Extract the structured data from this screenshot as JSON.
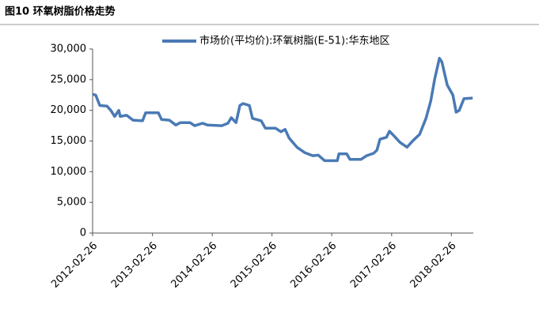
{
  "chart_data": {
    "type": "line",
    "title": "图10 环氧树脂价格走势",
    "x": [
      "2012-02-26",
      "2012-03-16",
      "2012-04-10",
      "2012-05-23",
      "2012-06-16",
      "2012-07-10",
      "2012-08-04",
      "2012-08-13",
      "2012-09-21",
      "2012-10-30",
      "2012-12-27",
      "2013-01-15",
      "2013-04-03",
      "2013-04-22",
      "2013-06-09",
      "2013-07-18",
      "2013-08-16",
      "2013-10-13",
      "2013-11-11",
      "2013-12-29",
      "2014-01-28",
      "2014-04-25",
      "2014-06-02",
      "2014-06-22",
      "2014-07-21",
      "2014-08-14",
      "2014-09-02",
      "2014-10-11",
      "2014-10-30",
      "2014-12-22",
      "2015-01-16",
      "2015-03-19",
      "2015-04-22",
      "2015-05-17",
      "2015-06-10",
      "2015-07-28",
      "2015-09-15",
      "2015-11-02",
      "2015-12-06",
      "2016-01-14",
      "2016-03-31",
      "2016-04-10",
      "2016-05-28",
      "2016-06-16",
      "2016-08-23",
      "2016-09-26",
      "2016-11-08",
      "2016-11-28",
      "2016-12-17",
      "2017-01-25",
      "2017-02-13",
      "2017-03-14",
      "2017-04-17",
      "2017-05-31",
      "2017-07-08",
      "2017-08-16",
      "2017-09-24",
      "2017-10-23",
      "2017-11-16",
      "2017-12-15",
      "2017-12-30",
      "2018-02-01",
      "2018-03-07",
      "2018-03-27",
      "2018-04-15",
      "2018-05-14",
      "2018-07-06"
    ],
    "series": [
      {
        "name": "市场价(平均价):环氧树脂(E-51):华东地区",
        "color": "#4a7ab5",
        "values": [
          22600,
          22500,
          20800,
          20700,
          20000,
          19000,
          20000,
          19000,
          19200,
          18400,
          18300,
          19600,
          19600,
          18500,
          18400,
          17600,
          18000,
          18000,
          17500,
          17900,
          17600,
          17500,
          17900,
          18800,
          18000,
          20800,
          21100,
          20800,
          18700,
          18300,
          17100,
          17100,
          16500,
          16900,
          15500,
          14000,
          13100,
          12600,
          12700,
          11800,
          11800,
          12900,
          12900,
          12000,
          12000,
          12600,
          13000,
          13500,
          15300,
          15600,
          16600,
          15800,
          14800,
          14000,
          15100,
          16100,
          18700,
          21500,
          25100,
          28500,
          27900,
          24100,
          22500,
          19700,
          20000,
          21900,
          22000
        ]
      }
    ],
    "xlim": [
      "2012-02-26",
      "2018-07-10"
    ],
    "xticks": [
      "2012-02-26",
      "2013-02-26",
      "2014-02-26",
      "2015-02-26",
      "2016-02-26",
      "2017-02-26",
      "2018-02-26"
    ],
    "ylim": [
      0,
      30000
    ],
    "yticks": [
      0,
      {
        "value": 5000,
        "label": "5,000"
      },
      {
        "value": 10000,
        "label": "10,000"
      },
      {
        "value": 15000,
        "label": "15,000"
      },
      {
        "value": 20000,
        "label": "20,000"
      },
      {
        "value": 25000,
        "label": "25,000"
      },
      {
        "value": 30000,
        "label": "30,000"
      }
    ],
    "grid": false
  }
}
